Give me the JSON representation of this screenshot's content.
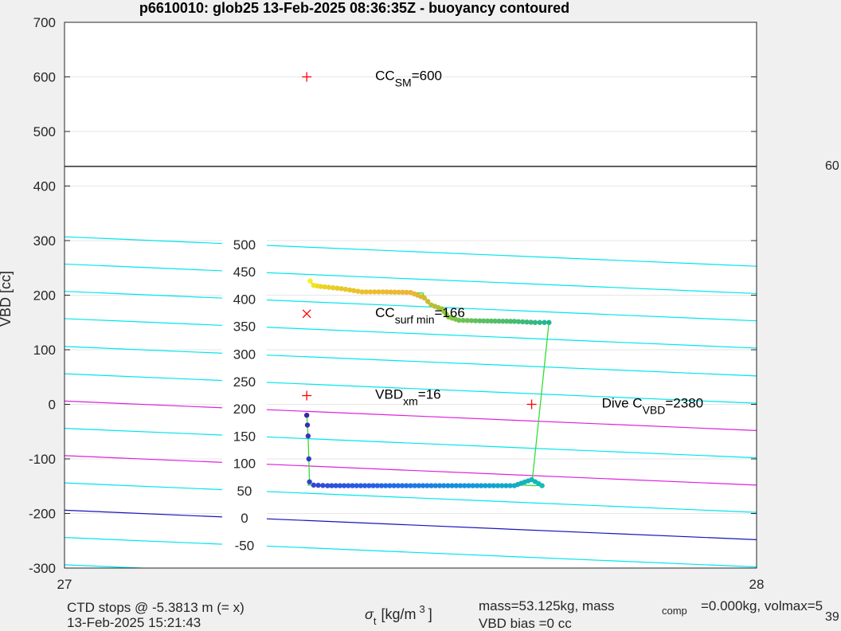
{
  "chart_data": {
    "type": "scatter",
    "title": "p6610010: glob25 13-Feb-2025 08:36:35Z - buoyancy contoured",
    "xlabel": "σ_t [kg/m^3]",
    "xlabel_parts": {
      "sym": "σ",
      "sub": "t",
      "unit": "[kg/m",
      "exp": "3",
      "close": "]"
    },
    "ylabel": "VBD [cc]",
    "xlim": [
      27,
      28
    ],
    "ylim": [
      -300,
      700
    ],
    "x_ticks": [
      "27",
      "28"
    ],
    "y_ticks": [
      "-300",
      "-200",
      "-100",
      "0",
      "100",
      "200",
      "300",
      "400",
      "500",
      "600",
      "700"
    ],
    "grid": true,
    "horizontal_line": {
      "y": 436,
      "label": "60",
      "color": "#000000"
    },
    "contour_lines": [
      {
        "y0": 307,
        "y1": 253,
        "label": "500",
        "color": "#00e5ee"
      },
      {
        "y0": 257,
        "y1": 203,
        "label": "450",
        "color": "#00e5ee"
      },
      {
        "y0": 207,
        "y1": 153,
        "label": "400",
        "color": "#00e5ee"
      },
      {
        "y0": 157,
        "y1": 103,
        "label": "350",
        "color": "#00e5ee"
      },
      {
        "y0": 106,
        "y1": 52,
        "label": "300",
        "color": "#00e5ee"
      },
      {
        "y0": 56,
        "y1": 2,
        "label": "250",
        "color": "#00e5ee"
      },
      {
        "y0": 6,
        "y1": -48,
        "label": "200",
        "color": "#dd22dd"
      },
      {
        "y0": -44,
        "y1": -98,
        "label": "150",
        "color": "#00e5ee"
      },
      {
        "y0": -94,
        "y1": -148,
        "label": "100",
        "color": "#dd22dd"
      },
      {
        "y0": -144,
        "y1": -198,
        "label": "50",
        "color": "#00e5ee"
      },
      {
        "y0": -194,
        "y1": -248,
        "label": "0",
        "color": "#1515bb"
      },
      {
        "y0": -244,
        "y1": -298,
        "label": "-50",
        "color": "#00e5ee"
      },
      {
        "y0": -294,
        "y1": -348,
        "label": "",
        "color": "#00e5ee"
      }
    ],
    "contour_label_x": [
      27.26,
      26.97
    ],
    "markers": [
      {
        "x": 27.35,
        "y": 600,
        "symbol": "+",
        "color": "#ff0000",
        "parts": [
          [
            "CC",
            ""
          ],
          [
            "SM",
            "sub"
          ],
          [
            "=600",
            ""
          ]
        ]
      },
      {
        "x": 27.35,
        "y": 166,
        "symbol": "x",
        "color": "#ff0000",
        "parts": [
          [
            "CC",
            ""
          ],
          [
            "surf min",
            "sub"
          ],
          [
            "=166",
            ""
          ]
        ]
      },
      {
        "x": 27.35,
        "y": 16,
        "symbol": "+",
        "color": "#ff0000",
        "parts": [
          [
            "VBD",
            ""
          ],
          [
            "xm",
            "sub"
          ],
          [
            "=16",
            ""
          ]
        ]
      },
      {
        "x": 27.675,
        "y": 0,
        "symbol": "+",
        "color": "#ff0000",
        "parts": [
          [
            "Dive C",
            ""
          ],
          [
            "VBD",
            "sub"
          ],
          [
            "=2380",
            ""
          ]
        ]
      }
    ],
    "trajectory_color": "#33dd33",
    "trajectory": [
      [
        27.35,
        -20
      ],
      [
        27.351,
        -38
      ],
      [
        27.352,
        -58
      ],
      [
        27.353,
        -100
      ],
      [
        27.354,
        -142
      ],
      [
        27.352,
        -148
      ],
      [
        27.38,
        -149
      ],
      [
        27.43,
        -149
      ],
      [
        27.5,
        -149
      ],
      [
        27.56,
        -149
      ],
      [
        27.62,
        -149
      ],
      [
        27.66,
        -148
      ],
      [
        27.68,
        -149
      ],
      [
        27.69,
        -148
      ],
      [
        27.68,
        -140
      ],
      [
        27.676,
        -138
      ],
      [
        27.7,
        150
      ],
      [
        27.68,
        150
      ],
      [
        27.66,
        151
      ],
      [
        27.63,
        152
      ],
      [
        27.6,
        153
      ],
      [
        27.57,
        154
      ],
      [
        27.56,
        156
      ],
      [
        27.556,
        160
      ],
      [
        27.553,
        168
      ],
      [
        27.545,
        175
      ],
      [
        27.54,
        180
      ],
      [
        27.53,
        182
      ],
      [
        27.525,
        185
      ],
      [
        27.52,
        195
      ],
      [
        27.518,
        204
      ],
      [
        27.49,
        205
      ],
      [
        27.46,
        206
      ],
      [
        27.43,
        206
      ],
      [
        27.41,
        210
      ],
      [
        27.39,
        215
      ],
      [
        27.37,
        216
      ],
      [
        27.36,
        218
      ],
      [
        27.355,
        226
      ]
    ],
    "dots_sink": [
      [
        27.35,
        -20
      ],
      [
        27.351,
        -38
      ],
      [
        27.352,
        -58
      ],
      [
        27.353,
        -100
      ],
      [
        27.354,
        -142
      ],
      [
        27.36,
        -148
      ],
      [
        27.38,
        -149
      ],
      [
        27.41,
        -149
      ],
      [
        27.44,
        -149
      ],
      [
        27.47,
        -149
      ],
      [
        27.5,
        -149
      ],
      [
        27.53,
        -149
      ],
      [
        27.56,
        -149
      ],
      [
        27.59,
        -149
      ],
      [
        27.62,
        -149
      ],
      [
        27.65,
        -149
      ],
      [
        27.675,
        -138
      ],
      [
        27.69,
        -149
      ]
    ],
    "dots_rise": [
      [
        27.7,
        150
      ],
      [
        27.68,
        150
      ],
      [
        27.65,
        152
      ],
      [
        27.6,
        153
      ],
      [
        27.57,
        154
      ],
      [
        27.555,
        160
      ],
      [
        27.545,
        175
      ],
      [
        27.53,
        182
      ],
      [
        27.52,
        195
      ],
      [
        27.5,
        205
      ],
      [
        27.46,
        206
      ],
      [
        27.43,
        206
      ],
      [
        27.4,
        212
      ],
      [
        27.37,
        216
      ],
      [
        27.36,
        218
      ],
      [
        27.355,
        226
      ]
    ]
  },
  "footer": {
    "ctd_stops": "CTD stops @ -5.3813 m (= x)",
    "datetime": "13-Feb-2025 15:21:43",
    "mass_a": "mass=53.125kg, mass",
    "mass_sub": "comp",
    "mass_b": "=0.000kg, volmax=5",
    "vbd_bias": "VBD bias =0 cc",
    "cut_number": "39"
  }
}
